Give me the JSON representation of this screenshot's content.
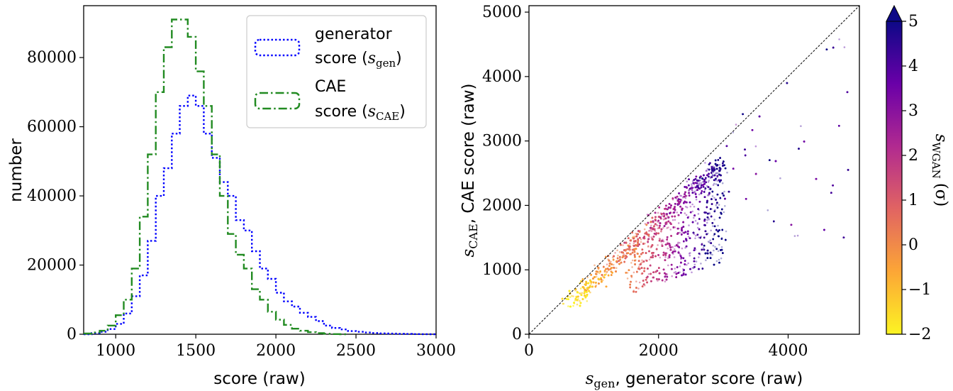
{
  "colors": {
    "generator": "#0000ff",
    "cae": "#228b22",
    "diagonal": "#000000",
    "colormap": [
      "#fcf423",
      "#fca636",
      "#e16462",
      "#b12a90",
      "#6a00a8",
      "#0d0887"
    ]
  },
  "chart_data": [
    {
      "type": "histogram",
      "xlabel": "score (raw)",
      "ylabel": "number",
      "xlim": [
        800,
        3000
      ],
      "ylim": [
        0,
        95000
      ],
      "xticks": [
        "1000",
        "1500",
        "2000",
        "2500",
        "3000"
      ],
      "yticks": [
        "0",
        "20000",
        "40000",
        "60000",
        "80000"
      ],
      "bin_width": 50,
      "legend": {
        "placement": "top-right",
        "entries": [
          {
            "line1": "generator",
            "line2_prefix": "score (",
            "sym": "s",
            "sub": "gen",
            "suffix": ")"
          },
          {
            "line1": "CAE",
            "line2_prefix": "score (",
            "sym": "s",
            "sub": "CAE",
            "suffix": ")"
          }
        ]
      },
      "series": [
        {
          "name": "generator score (s_gen)",
          "style": "dotted",
          "bin_starts": [
            800,
            850,
            900,
            950,
            1000,
            1050,
            1100,
            1150,
            1200,
            1250,
            1300,
            1350,
            1400,
            1450,
            1500,
            1550,
            1600,
            1650,
            1700,
            1750,
            1800,
            1850,
            1900,
            1950,
            2000,
            2050,
            2100,
            2150,
            2200,
            2250,
            2300,
            2350,
            2400,
            2450,
            2500,
            2550,
            2600,
            2650,
            2700,
            2750,
            2800,
            2850,
            2900,
            2950
          ],
          "values": [
            0,
            300,
            700,
            1500,
            3000,
            6000,
            11000,
            17000,
            27000,
            40000,
            48000,
            58000,
            66000,
            69000,
            66000,
            58000,
            51000,
            44000,
            40000,
            33000,
            30000,
            24000,
            19000,
            16000,
            12000,
            9500,
            8000,
            6200,
            5000,
            3800,
            2500,
            1800,
            1400,
            900,
            700,
            500,
            350,
            250,
            180,
            120,
            80,
            50,
            30,
            0
          ]
        },
        {
          "name": "CAE score (s_CAE)",
          "style": "dashdot",
          "bin_starts": [
            800,
            850,
            900,
            950,
            1000,
            1050,
            1100,
            1150,
            1200,
            1250,
            1300,
            1350,
            1400,
            1450,
            1500,
            1550,
            1600,
            1650,
            1700,
            1750,
            1800,
            1850,
            1900,
            1950,
            2000,
            2050,
            2100,
            2150,
            2200,
            2250,
            2300,
            2350,
            2400
          ],
          "values": [
            200,
            500,
            1000,
            2500,
            5500,
            10000,
            19000,
            34000,
            52000,
            70000,
            83000,
            91000,
            91000,
            86000,
            76000,
            66000,
            52000,
            40000,
            29000,
            23000,
            19000,
            13000,
            10000,
            6500,
            4200,
            2700,
            1600,
            1000,
            600,
            300,
            150,
            50,
            0
          ]
        }
      ]
    },
    {
      "type": "scatter",
      "xlabel_sym": "s",
      "xlabel_sub": "gen",
      "xlabel_text": ", generator score (raw)",
      "ylabel_sym": "s",
      "ylabel_sub": "CAE",
      "ylabel_text": ", CAE score (raw)",
      "xlim": [
        0,
        5100
      ],
      "ylim": [
        0,
        5100
      ],
      "xticks": [
        "0",
        "2000",
        "4000"
      ],
      "yticks": [
        "0",
        "1000",
        "2000",
        "3000",
        "4000",
        "5000"
      ],
      "reference_line": "y = x",
      "colorbar": {
        "label_sym": "s",
        "label_sub": "WGAN",
        "label_unit": "(σ)",
        "range": [
          -2,
          5
        ],
        "ticks": [
          "−2",
          "−1",
          "0",
          "1",
          "2",
          "3",
          "4",
          "5"
        ],
        "extend": "max"
      },
      "point_clusters": [
        {
          "desc": "main cluster core",
          "x_range": [
            600,
            3000
          ],
          "y_range": [
            500,
            2600
          ],
          "color_range": [
            -2,
            5
          ]
        },
        {
          "desc": "sparse outliers",
          "x_range": [
            2800,
            5000
          ],
          "y_range": [
            1500,
            4900
          ],
          "color_range": [
            3,
            5
          ]
        }
      ]
    }
  ]
}
